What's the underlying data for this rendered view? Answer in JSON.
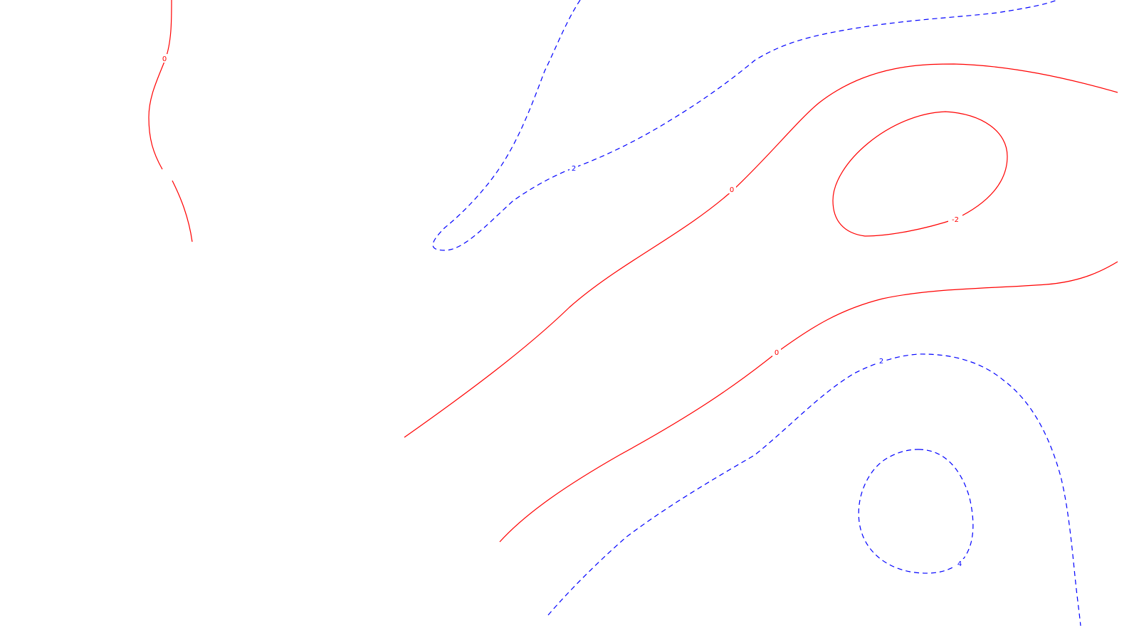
{
  "contour_plot": {
    "series": [
      {
        "level": 0,
        "style": "solid",
        "color": "#ff0000"
      },
      {
        "level": -2,
        "style": "solid",
        "color": "#ff0000"
      },
      {
        "level": 2,
        "style": "dashed",
        "color": "#0000ff"
      },
      {
        "level": 4,
        "style": "dashed",
        "color": "#0000ff"
      }
    ],
    "labels": {
      "zero_left": "0",
      "zero_upper": "0",
      "zero_lower": "0",
      "minus_two": "-2",
      "two_upper": "2",
      "two_lower": "2",
      "four": "4"
    }
  }
}
